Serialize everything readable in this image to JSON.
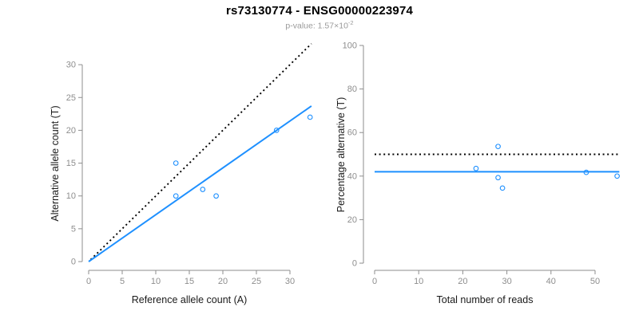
{
  "header": {
    "title": "rs73130774 - ENSG00000223974",
    "pvalue_main": "p-value: 1.57×10",
    "pvalue_exponent": "-2"
  },
  "colors": {
    "accent_blue": "#1E90FF",
    "line_black": "#000000",
    "axis_gray": "#8E8E8E",
    "title_black": "#000000",
    "subtitle_gray": "#9A9A9A",
    "background": "#FFFFFF"
  },
  "chart_data": [
    {
      "type": "scatter",
      "title": "rs73130774 - ENSG00000223974",
      "subtitle": "p-value: 1.57×10⁻²",
      "xlabel": "Reference allele count (A)",
      "ylabel": "Alternative allele count (T)",
      "xlim": [
        0,
        33.2
      ],
      "ylim": [
        0,
        33.2
      ],
      "xticks": [
        0,
        5,
        10,
        15,
        20,
        25,
        30
      ],
      "yticks": [
        0,
        5,
        10,
        15,
        20,
        25,
        30
      ],
      "grid": false,
      "legend": "none",
      "point_color": "#1E90FF",
      "points": [
        [
          13,
          15
        ],
        [
          13,
          10
        ],
        [
          17,
          11
        ],
        [
          19,
          10
        ],
        [
          28,
          20
        ],
        [
          33,
          22
        ]
      ],
      "lines": [
        {
          "name": "identity-line",
          "style": "dotted",
          "color": "#000000",
          "from": [
            0.3,
            0.3
          ],
          "to": [
            33.2,
            33.2
          ]
        },
        {
          "name": "regression-line",
          "style": "solid",
          "color": "#1E90FF",
          "from": [
            0,
            0
          ],
          "to": [
            33.2,
            23.7
          ]
        }
      ]
    },
    {
      "type": "scatter",
      "title": "",
      "xlabel": "Total number of reads",
      "ylabel": "Percentage alternative (T)",
      "xlim": [
        0,
        55.5
      ],
      "ylim": [
        0,
        100
      ],
      "xticks": [
        0,
        10,
        20,
        30,
        40,
        50
      ],
      "yticks": [
        0,
        20,
        40,
        60,
        80,
        100
      ],
      "grid": false,
      "legend": "none",
      "point_color": "#1E90FF",
      "points": [
        [
          23,
          43.5
        ],
        [
          28,
          53.6
        ],
        [
          28,
          39.3
        ],
        [
          29,
          34.5
        ],
        [
          48,
          41.7
        ],
        [
          55,
          40
        ]
      ],
      "lines": [
        {
          "name": "expected-fifty-percent-line",
          "style": "dotted",
          "color": "#000000",
          "from": [
            0,
            50
          ],
          "to": [
            55.5,
            50
          ]
        },
        {
          "name": "mean-percentage-line",
          "style": "solid",
          "color": "#1E90FF",
          "from": [
            0,
            42
          ],
          "to": [
            55.5,
            42
          ]
        }
      ]
    }
  ]
}
